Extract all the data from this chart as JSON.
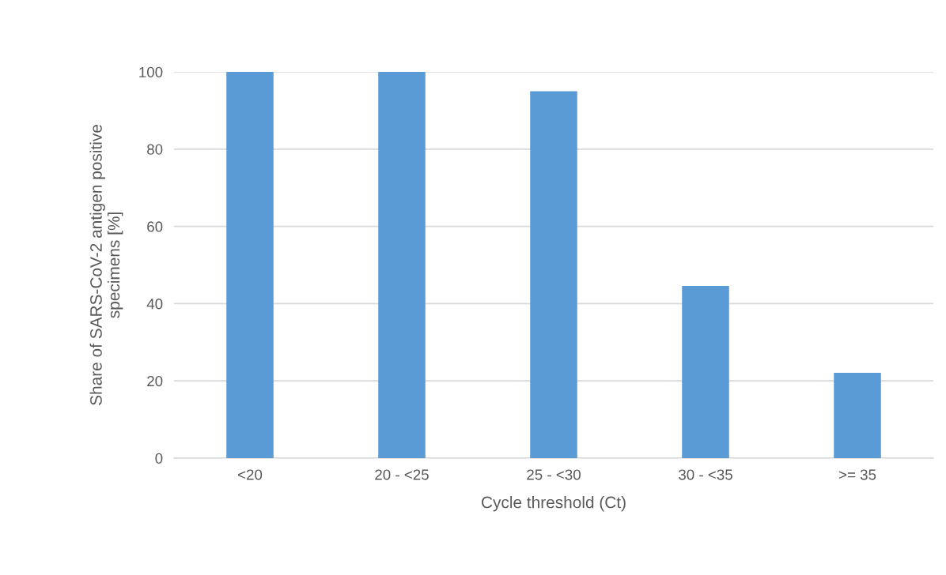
{
  "chart_data": {
    "type": "bar",
    "xlabel": "Cycle threshold (Ct)",
    "ylabel": "Share of SARS-CoV-2 antigen positive\nspecimens [%]",
    "categories": [
      "<20",
      "20 - <25",
      "25 - <30",
      "30 - <35",
      ">= 35"
    ],
    "values": [
      100,
      100,
      95,
      44.6,
      22.1
    ],
    "color": "#5b9bd5",
    "ylim": [
      0,
      100
    ],
    "yticks": [
      0,
      20,
      40,
      60,
      80,
      100
    ],
    "grid": "y"
  }
}
